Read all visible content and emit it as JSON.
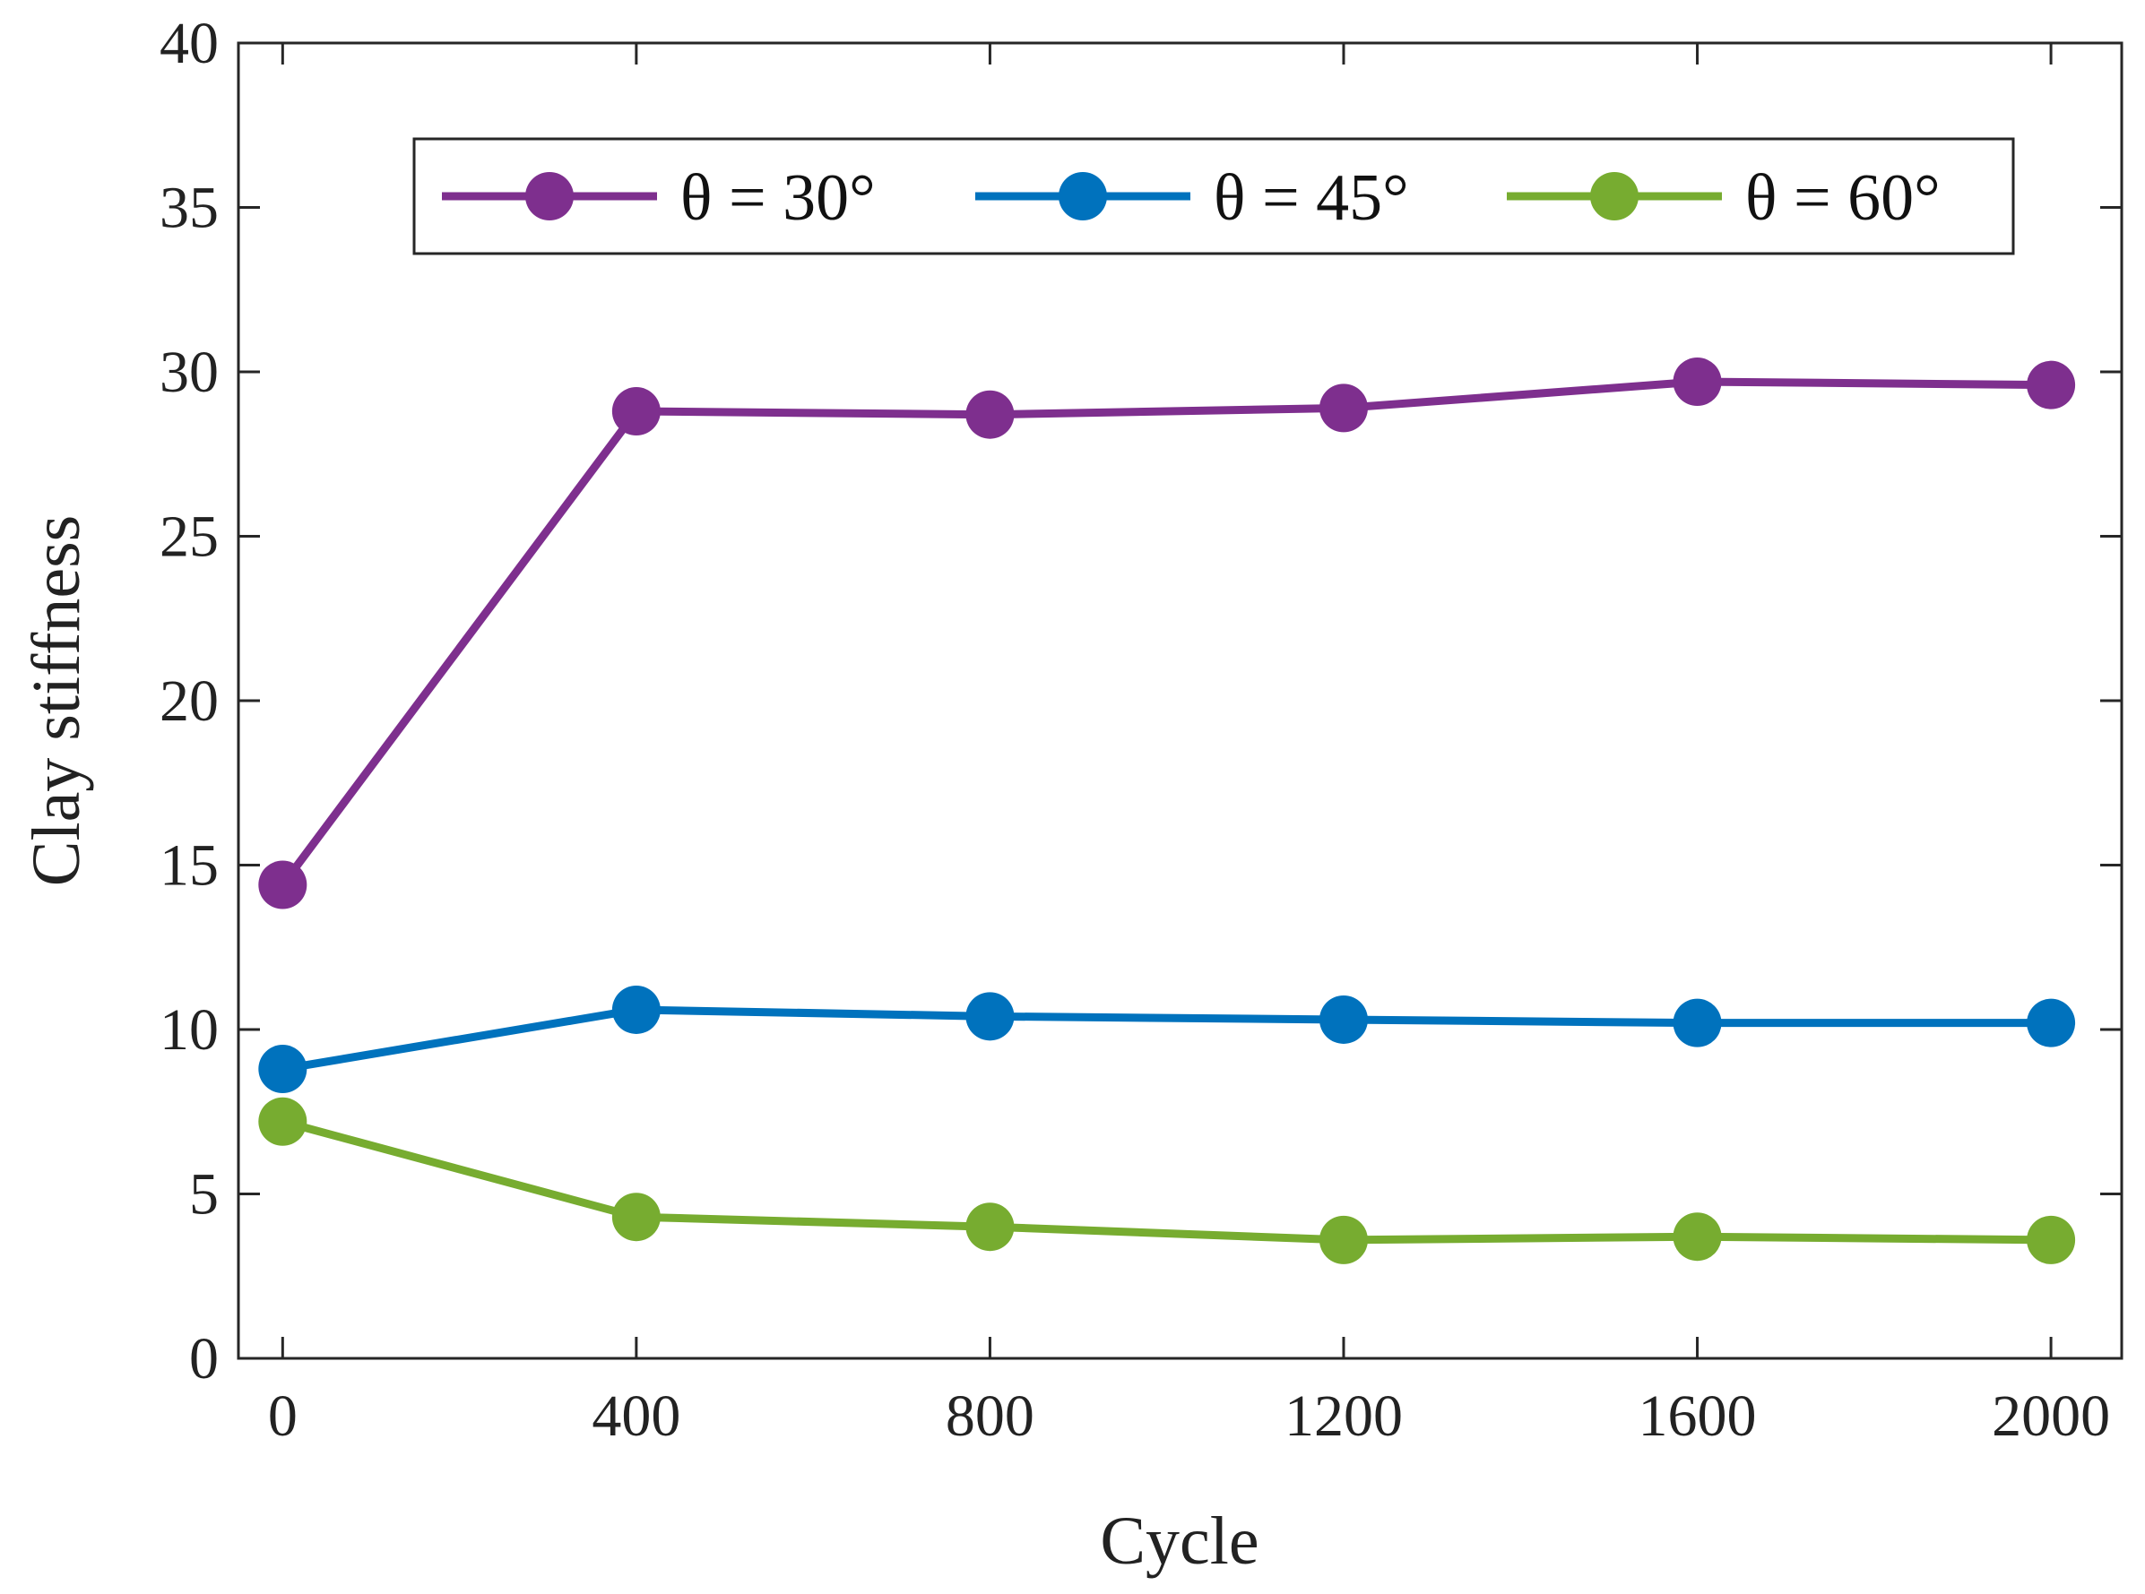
{
  "chart_data": {
    "type": "line",
    "title": "",
    "xlabel": "Cycle",
    "ylabel": "Clay stiffness",
    "x": [
      0,
      400,
      800,
      1200,
      1600,
      2000
    ],
    "xlim": [
      -50,
      2080
    ],
    "ylim": [
      0,
      40
    ],
    "xticks": [
      0,
      400,
      800,
      1200,
      1600,
      2000
    ],
    "yticks": [
      0,
      5,
      10,
      15,
      20,
      25,
      30,
      35,
      40
    ],
    "grid": false,
    "legend_position": "top-right",
    "series": [
      {
        "name": "θ = 30°",
        "color": "#7E2F8E",
        "values": [
          14.4,
          28.8,
          28.7,
          28.9,
          29.7,
          29.6
        ]
      },
      {
        "name": "θ = 45°",
        "color": "#0072BD",
        "values": [
          8.8,
          10.6,
          10.4,
          10.3,
          10.2,
          10.2
        ]
      },
      {
        "name": "θ = 60°",
        "color": "#77AC30",
        "values": [
          7.2,
          4.3,
          4.0,
          3.6,
          3.7,
          3.6
        ]
      }
    ]
  }
}
